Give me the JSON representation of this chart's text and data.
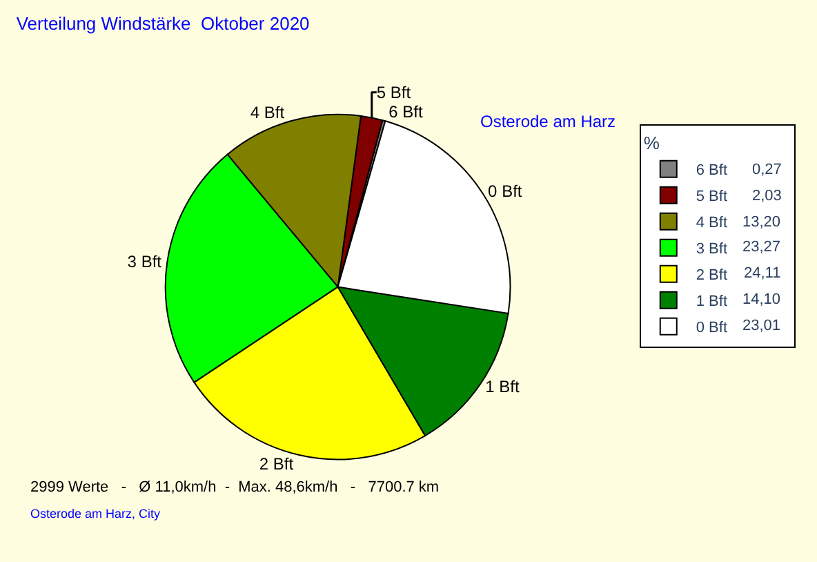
{
  "chart_data": {
    "type": "pie",
    "title": "Verteilung Windstärke  Oktober 2020",
    "subtitle": "Osterode am Harz",
    "legend_title": "%",
    "categories": [
      "6 Bft",
      "5 Bft",
      "4 Bft",
      "3 Bft",
      "2 Bft",
      "1 Bft",
      "0 Bft"
    ],
    "values": [
      0.27,
      2.03,
      13.2,
      23.27,
      24.11,
      14.1,
      23.01
    ],
    "value_labels": [
      "0,27",
      "2,03",
      "13,20",
      "23,27",
      "24,11",
      "14,10",
      "23,01"
    ],
    "colors": [
      "#808080",
      "#800000",
      "#808000",
      "#00ff00",
      "#ffff00",
      "#008000",
      "#ffffff"
    ],
    "legend": "top right",
    "annotations": [
      "2999 Werte   -   Ø 11,0km/h  -  Max. 48,6km/h   -   7700.7 km",
      "Osterode am Harz, City"
    ]
  }
}
